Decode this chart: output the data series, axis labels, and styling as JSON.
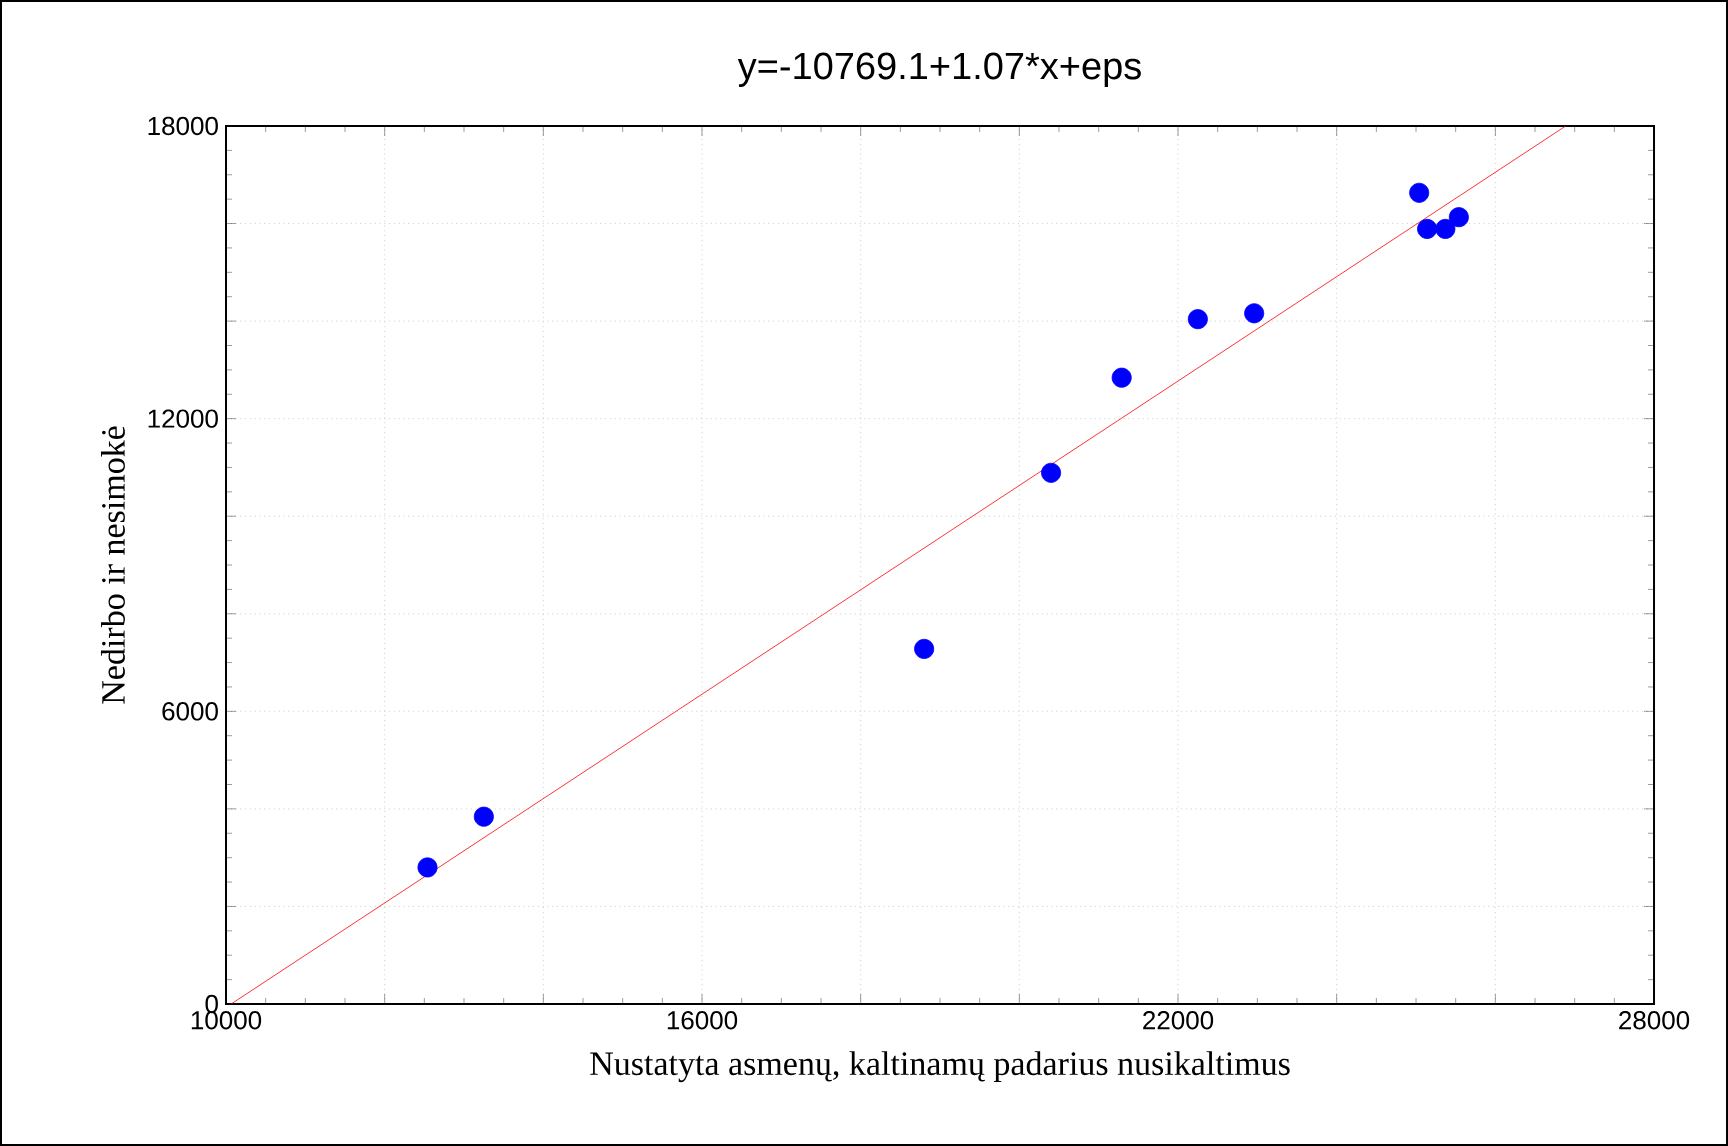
{
  "chart_data": {
    "type": "scatter",
    "title": "y=-10769.1+1.07*x+eps",
    "xlabel": "Nustatyta asmenų, kaltinamų padarius nusikaltimus",
    "ylabel": "Nedirbo ir nesimokė",
    "xlim": [
      10000,
      28000
    ],
    "ylim": [
      0,
      18000
    ],
    "xticks": [
      10000,
      {
        "value": 12000,
        "label": null
      },
      {
        "value": 14000,
        "label": null
      },
      16000,
      {
        "value": 18000,
        "label": null
      },
      {
        "value": 20000,
        "label": null
      },
      22000,
      {
        "value": 24000,
        "label": null
      },
      {
        "value": 26000,
        "label": null
      },
      28000
    ],
    "yticks": [
      0,
      {
        "value": 2000,
        "label": null
      },
      {
        "value": 4000,
        "label": null
      },
      6000,
      {
        "value": 8000,
        "label": null
      },
      {
        "value": 10000,
        "label": null
      },
      12000,
      {
        "value": 14000,
        "label": null
      },
      {
        "value": 16000,
        "label": null
      },
      18000
    ],
    "grid": true,
    "series": [
      {
        "color": "#0000ff",
        "marker": "circle",
        "x": [
          12540,
          13250,
          18800,
          20400,
          21290,
          22250,
          22960,
          25040,
          25140,
          25370,
          25540
        ],
        "values": [
          2800,
          3840,
          7280,
          10890,
          12840,
          14040,
          14160,
          16630,
          15890,
          15890,
          16130
        ]
      },
      {
        "type": "line",
        "color": "#ff0000",
        "marker": "none",
        "x": [
          10064.6,
          26887.0
        ],
        "values": [
          0,
          18000
        ]
      }
    ]
  }
}
